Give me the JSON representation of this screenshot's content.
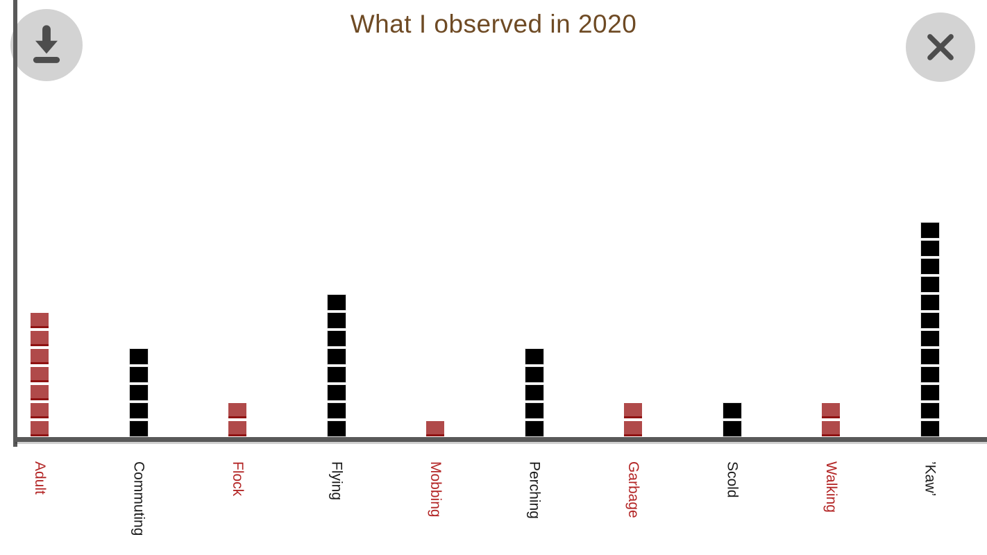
{
  "header": {
    "title": "What I observed in 2020"
  },
  "controls": {
    "download_icon": "download-icon",
    "close_icon": "close-icon"
  },
  "chart_data": {
    "type": "bar",
    "subtype": "pictograph-stacked-squares",
    "title": "What I observed in 2020",
    "xlabel": "",
    "ylabel": "",
    "grid": false,
    "legend": false,
    "categories": [
      "Adult",
      "Commuting",
      "Flock",
      "Flying",
      "Mobbing",
      "Perching",
      "Garbage",
      "Scold",
      "Walking",
      "’Kaw’"
    ],
    "values": [
      7,
      5,
      2,
      8,
      1,
      5,
      2,
      2,
      2,
      12
    ],
    "category_colors": [
      "red",
      "black",
      "red",
      "black",
      "red",
      "black",
      "red",
      "black",
      "red",
      "black"
    ],
    "colors": {
      "red_square": "#b04a4a",
      "red_square_edge": "#8f1212",
      "black_square": "#000000",
      "red_label": "#b32626",
      "black_label": "#1b1b1b",
      "axis": "#595959",
      "title": "#6e4a24",
      "button_background": "#d3d3d3",
      "button_icon": "#4d4d4d"
    }
  }
}
